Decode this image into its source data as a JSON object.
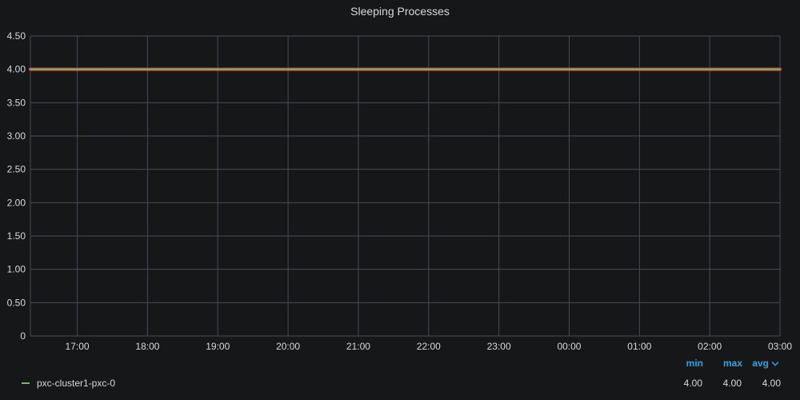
{
  "panel": {
    "title": "Sleeping Processes"
  },
  "colors": {
    "series": "#7eb26d",
    "threshold": "#e24d42",
    "grid": "#464c54",
    "axis_text": "#d8d9da",
    "legend_header": "#33a2e5"
  },
  "legend": {
    "columns": [
      "min",
      "max",
      "avg"
    ],
    "sort_icon": "chevron-down-icon",
    "rows": [
      {
        "name": "pxc-cluster1-pxc-0",
        "min": "4.00",
        "max": "4.00",
        "avg": "4.00"
      }
    ]
  },
  "chart_data": {
    "type": "line",
    "title": "Sleeping Processes",
    "xlabel": "",
    "ylabel": "",
    "y_ticks": [
      "0",
      "0.50",
      "1.00",
      "1.50",
      "2.00",
      "2.50",
      "3.00",
      "3.50",
      "4.00",
      "4.50"
    ],
    "y_tick_values": [
      0,
      0.5,
      1.0,
      1.5,
      2.0,
      2.5,
      3.0,
      3.5,
      4.0,
      4.5
    ],
    "ylim": [
      0,
      4.5
    ],
    "x_ticks": [
      "17:00",
      "18:00",
      "19:00",
      "20:00",
      "21:00",
      "22:00",
      "23:00",
      "00:00",
      "01:00",
      "02:00",
      "03:00"
    ],
    "xlim": [
      "16:20",
      "03:00"
    ],
    "grid": true,
    "legend_placement": "bottom",
    "series": [
      {
        "name": "pxc-cluster1-pxc-0",
        "x": [
          "16:20",
          "17:00",
          "18:00",
          "19:00",
          "20:00",
          "21:00",
          "22:00",
          "23:00",
          "00:00",
          "01:00",
          "02:00",
          "03:00"
        ],
        "values": [
          4,
          4,
          4,
          4,
          4,
          4,
          4,
          4,
          4,
          4,
          4,
          4
        ]
      }
    ]
  }
}
